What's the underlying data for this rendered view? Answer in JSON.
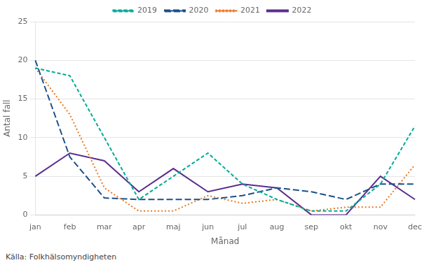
{
  "chart_data": {
    "type": "line",
    "categories": [
      "jan",
      "feb",
      "mar",
      "apr",
      "maj",
      "jun",
      "jul",
      "aug",
      "sep",
      "okt",
      "nov",
      "dec"
    ],
    "series": [
      {
        "name": "2019",
        "color": "#00AA96",
        "line_style": "dashed",
        "values": [
          19,
          18,
          10,
          2,
          5,
          8,
          4,
          2,
          0.5,
          0.5,
          4,
          11.5
        ]
      },
      {
        "name": "2020",
        "color": "#1A4F8A",
        "line_style": "long_dashed",
        "values": [
          20,
          7.5,
          2.2,
          2,
          2,
          2,
          2.5,
          3.5,
          3,
          2,
          4,
          4
        ]
      },
      {
        "name": "2021",
        "color": "#E87722",
        "line_style": "dotted",
        "values": [
          19,
          13,
          3.5,
          0.5,
          0.5,
          2.5,
          1.5,
          2,
          0.5,
          1,
          1,
          6.5
        ]
      },
      {
        "name": "2022",
        "color": "#5B2D8E",
        "line_style": "solid",
        "values": [
          5,
          8,
          7,
          3,
          6,
          3,
          4,
          3.5,
          0,
          0,
          5,
          2
        ]
      }
    ],
    "ylabel": "Antal fall",
    "xlabel": "Månad",
    "source": "Källa: Folkhälsomyndigheten",
    "ylim": [
      0,
      25
    ],
    "yticks": [
      0,
      5,
      10,
      15,
      20,
      25
    ],
    "grid": "y",
    "legend": "top"
  }
}
